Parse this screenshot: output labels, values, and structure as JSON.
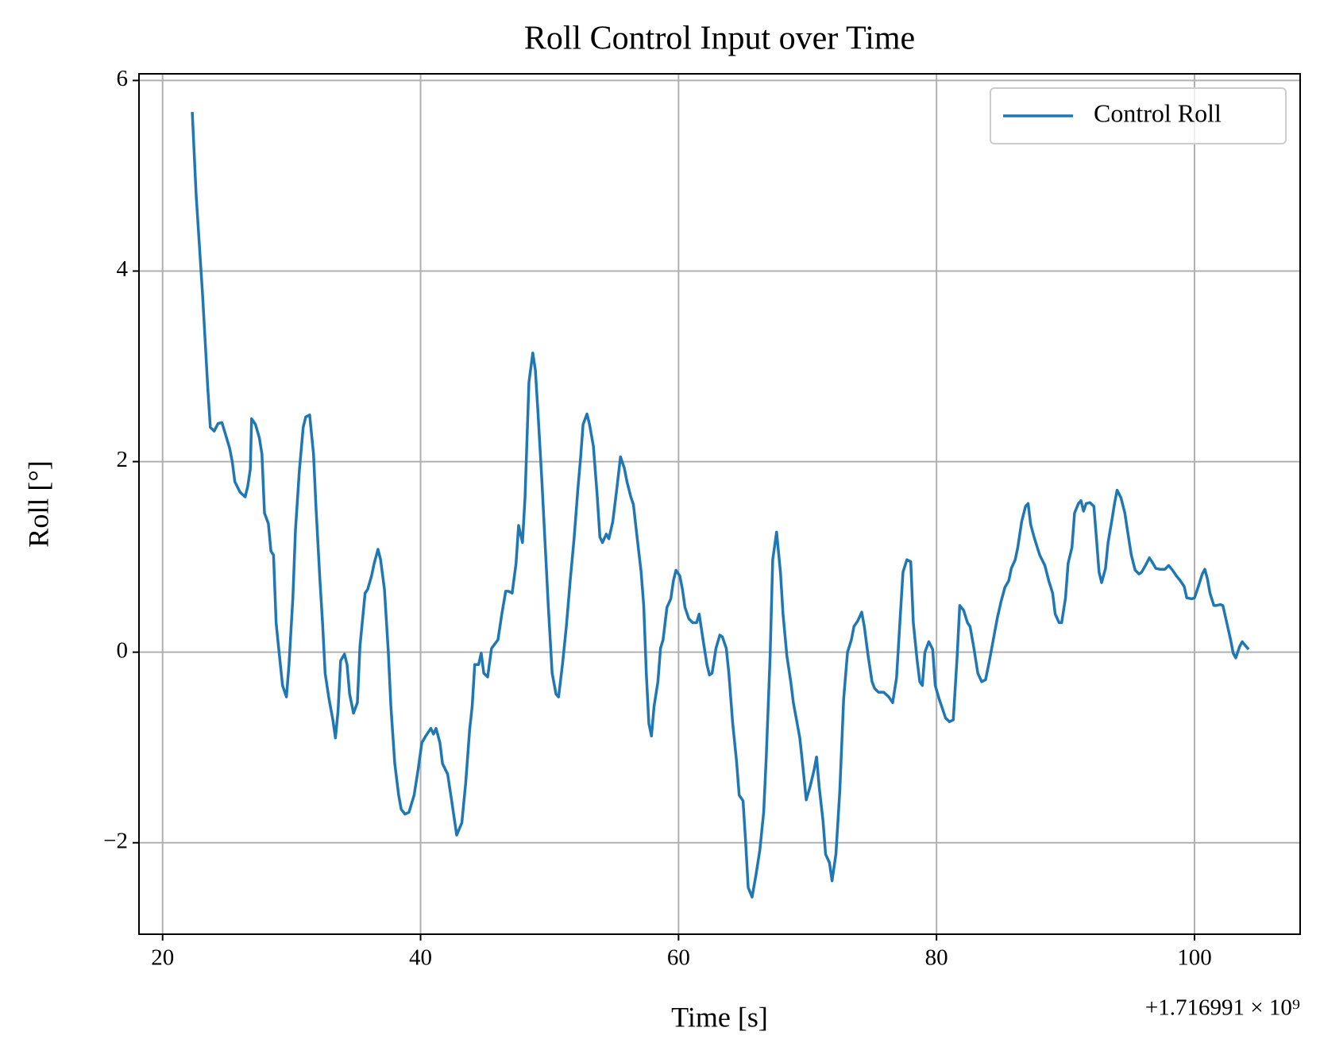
{
  "chart_data": {
    "type": "line",
    "title": "Roll Control Input over Time",
    "x_label": "Time [s]",
    "y_label": "Roll [°]",
    "x_offset": "+1.716991 × 10⁹",
    "xlim": [
      18.17,
      108.19
    ],
    "ylim": [
      -2.96,
      6.07
    ],
    "xticks": [
      20,
      40,
      60,
      80,
      100
    ],
    "yticks": [
      {
        "value": -2,
        "label": "−2"
      },
      0,
      2,
      4,
      6
    ],
    "grid": true,
    "legend": "upper right",
    "x": [
      22.3,
      22.6,
      23.1,
      23.5,
      23.7,
      24.0,
      24.3,
      24.6,
      24.8,
      25.2,
      25.4,
      25.6,
      26.0,
      26.4,
      26.6,
      26.8,
      26.9,
      27.2,
      27.5,
      27.7,
      27.9,
      28.2,
      28.4,
      28.6,
      28.8,
      29.0,
      29.3,
      29.6,
      29.8,
      30.1,
      30.3,
      30.6,
      30.9,
      31.1,
      31.4,
      31.7,
      31.9,
      32.2,
      32.4,
      32.6,
      32.9,
      33.2,
      33.4,
      33.6,
      33.8,
      34.1,
      34.3,
      34.5,
      34.8,
      35.1,
      35.3,
      35.7,
      35.9,
      36.2,
      36.4,
      36.7,
      36.9,
      37.2,
      37.5,
      37.7,
      38.0,
      38.3,
      38.5,
      38.8,
      39.1,
      39.5,
      39.8,
      40.1,
      40.4,
      40.8,
      41.0,
      41.2,
      41.5,
      41.7,
      42.1,
      42.4,
      42.8,
      43.2,
      43.5,
      43.8,
      44.0,
      44.2,
      44.5,
      44.7,
      44.9,
      45.2,
      45.5,
      46.0,
      46.3,
      46.6,
      46.8,
      47.1,
      47.4,
      47.6,
      47.9,
      48.1,
      48.4,
      48.7,
      48.9,
      49.1,
      49.4,
      49.7,
      49.9,
      50.2,
      50.5,
      50.7,
      51.0,
      51.3,
      51.6,
      51.9,
      52.2,
      52.4,
      52.6,
      52.9,
      53.1,
      53.4,
      53.7,
      53.9,
      54.1,
      54.4,
      54.6,
      54.9,
      55.2,
      55.5,
      55.8,
      56.0,
      56.3,
      56.5,
      56.8,
      57.1,
      57.3,
      57.5,
      57.7,
      57.9,
      58.1,
      58.4,
      58.6,
      58.8,
      59.1,
      59.4,
      59.6,
      59.8,
      60.1,
      60.3,
      60.5,
      60.8,
      61.1,
      61.4,
      61.6,
      61.9,
      62.2,
      62.4,
      62.6,
      62.9,
      63.2,
      63.4,
      63.7,
      63.9,
      64.2,
      64.5,
      64.7,
      65.0,
      65.2,
      65.4,
      65.7,
      66.0,
      66.3,
      66.6,
      66.8,
      67.1,
      67.3,
      67.6,
      67.9,
      68.1,
      68.4,
      68.7,
      68.9,
      69.2,
      69.4,
      69.6,
      69.9,
      70.2,
      70.5,
      70.7,
      70.9,
      71.2,
      71.4,
      71.7,
      71.9,
      72.2,
      72.5,
      72.8,
      73.1,
      73.4,
      73.6,
      73.9,
      74.2,
      74.4,
      74.7,
      75.0,
      75.2,
      75.5,
      75.9,
      76.3,
      76.6,
      76.9,
      77.2,
      77.4,
      77.7,
      78.0,
      78.2,
      78.5,
      78.7,
      78.9,
      79.1,
      79.4,
      79.7,
      79.9,
      80.2,
      80.4,
      80.7,
      81.0,
      81.3,
      81.6,
      81.8,
      82.1,
      82.4,
      82.6,
      82.9,
      83.2,
      83.5,
      83.8,
      84.1,
      84.4,
      84.7,
      85.0,
      85.3,
      85.6,
      85.8,
      86.1,
      86.3,
      86.6,
      86.9,
      87.1,
      87.3,
      87.6,
      88.0,
      88.4,
      88.7,
      89.0,
      89.2,
      89.5,
      89.7,
      90.0,
      90.2,
      90.5,
      90.7,
      91.0,
      91.2,
      91.4,
      91.6,
      91.9,
      92.2,
      92.4,
      92.6,
      92.8,
      93.1,
      93.3,
      93.6,
      93.8,
      94.0,
      94.3,
      94.6,
      94.8,
      95.1,
      95.4,
      95.7,
      95.9,
      96.2,
      96.5,
      96.7,
      97.0,
      97.3,
      97.7,
      98.0,
      98.3,
      98.6,
      98.9,
      99.2,
      99.4,
      99.8,
      100.0,
      100.3,
      100.6,
      100.8,
      101.0,
      101.2,
      101.5,
      101.7,
      102.0,
      102.2,
      102.5,
      102.8,
      103.0,
      103.2,
      103.5,
      103.7,
      104.0,
      104.2
    ],
    "series": [
      {
        "name": "Control Roll",
        "color": "#1f77b4",
        "values": [
          5.67,
          4.8,
          3.75,
          2.78,
          2.36,
          2.32,
          2.4,
          2.41,
          2.32,
          2.14,
          2.0,
          1.79,
          1.68,
          1.63,
          1.74,
          1.92,
          2.45,
          2.39,
          2.25,
          2.08,
          1.46,
          1.35,
          1.06,
          1.02,
          0.31,
          0.04,
          -0.35,
          -0.47,
          -0.13,
          0.57,
          1.28,
          1.9,
          2.36,
          2.47,
          2.49,
          2.08,
          1.5,
          0.75,
          0.31,
          -0.22,
          -0.49,
          -0.71,
          -0.9,
          -0.62,
          -0.09,
          -0.02,
          -0.13,
          -0.44,
          -0.64,
          -0.53,
          0.06,
          0.62,
          0.66,
          0.8,
          0.93,
          1.08,
          0.97,
          0.66,
          0.0,
          -0.57,
          -1.17,
          -1.5,
          -1.65,
          -1.7,
          -1.68,
          -1.5,
          -1.24,
          -0.95,
          -0.88,
          -0.8,
          -0.86,
          -0.8,
          -0.95,
          -1.17,
          -1.28,
          -1.55,
          -1.92,
          -1.79,
          -1.37,
          -0.82,
          -0.57,
          -0.13,
          -0.13,
          -0.01,
          -0.22,
          -0.26,
          0.04,
          0.13,
          0.4,
          0.64,
          0.64,
          0.62,
          0.93,
          1.33,
          1.15,
          1.63,
          2.83,
          3.14,
          2.96,
          2.52,
          1.81,
          1.02,
          0.49,
          -0.22,
          -0.44,
          -0.47,
          -0.13,
          0.27,
          0.75,
          1.19,
          1.72,
          2.03,
          2.39,
          2.5,
          2.39,
          2.16,
          1.63,
          1.21,
          1.15,
          1.24,
          1.19,
          1.37,
          1.7,
          2.05,
          1.93,
          1.79,
          1.63,
          1.55,
          1.19,
          0.84,
          0.49,
          -0.22,
          -0.75,
          -0.88,
          -0.57,
          -0.31,
          0.04,
          0.13,
          0.47,
          0.56,
          0.75,
          0.86,
          0.8,
          0.66,
          0.47,
          0.35,
          0.31,
          0.31,
          0.4,
          0.13,
          -0.13,
          -0.24,
          -0.22,
          0.04,
          0.18,
          0.16,
          0.04,
          -0.22,
          -0.75,
          -1.15,
          -1.5,
          -1.56,
          -1.99,
          -2.47,
          -2.57,
          -2.34,
          -2.08,
          -1.68,
          -1.1,
          -0.04,
          0.97,
          1.26,
          0.84,
          0.4,
          -0.04,
          -0.31,
          -0.53,
          -0.75,
          -0.9,
          -1.15,
          -1.55,
          -1.41,
          -1.24,
          -1.1,
          -1.41,
          -1.77,
          -2.12,
          -2.21,
          -2.4,
          -2.12,
          -1.46,
          -0.49,
          0.0,
          0.13,
          0.27,
          0.33,
          0.42,
          0.27,
          -0.04,
          -0.31,
          -0.38,
          -0.42,
          -0.42,
          -0.47,
          -0.53,
          -0.27,
          0.4,
          0.84,
          0.97,
          0.95,
          0.31,
          -0.09,
          -0.31,
          -0.35,
          0.0,
          0.11,
          0.03,
          -0.35,
          -0.49,
          -0.57,
          -0.69,
          -0.73,
          -0.71,
          -0.04,
          0.49,
          0.44,
          0.31,
          0.27,
          0.04,
          -0.22,
          -0.31,
          -0.29,
          -0.09,
          0.13,
          0.35,
          0.53,
          0.68,
          0.75,
          0.88,
          0.97,
          1.1,
          1.37,
          1.53,
          1.56,
          1.34,
          1.19,
          1.02,
          0.91,
          0.75,
          0.62,
          0.4,
          0.31,
          0.31,
          0.57,
          0.93,
          1.1,
          1.46,
          1.56,
          1.59,
          1.48,
          1.56,
          1.57,
          1.53,
          1.19,
          0.84,
          0.73,
          0.88,
          1.15,
          1.39,
          1.56,
          1.7,
          1.62,
          1.46,
          1.28,
          1.02,
          0.86,
          0.82,
          0.84,
          0.91,
          0.99,
          0.95,
          0.88,
          0.87,
          0.87,
          0.91,
          0.86,
          0.8,
          0.75,
          0.69,
          0.57,
          0.56,
          0.57,
          0.69,
          0.82,
          0.87,
          0.77,
          0.62,
          0.49,
          0.49,
          0.5,
          0.49,
          0.31,
          0.13,
          -0.01,
          -0.06,
          0.06,
          0.11,
          0.06,
          0.03
        ]
      }
    ]
  }
}
